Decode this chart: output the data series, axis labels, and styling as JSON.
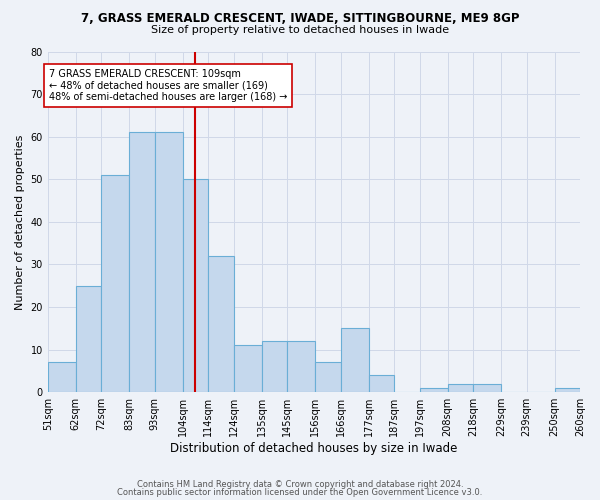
{
  "title1": "7, GRASS EMERALD CRESCENT, IWADE, SITTINGBOURNE, ME9 8GP",
  "title2": "Size of property relative to detached houses in Iwade",
  "xlabel": "Distribution of detached houses by size in Iwade",
  "ylabel": "Number of detached properties",
  "footer1": "Contains HM Land Registry data © Crown copyright and database right 2024.",
  "footer2": "Contains public sector information licensed under the Open Government Licence v3.0.",
  "bins": [
    51,
    62,
    72,
    83,
    93,
    104,
    114,
    124,
    135,
    145,
    156,
    166,
    177,
    187,
    197,
    208,
    218,
    229,
    239,
    250,
    260
  ],
  "bar_heights": [
    7,
    25,
    51,
    61,
    61,
    50,
    32,
    11,
    12,
    12,
    7,
    15,
    4,
    0,
    1,
    2,
    2,
    0,
    0,
    1
  ],
  "bar_color": "#c5d8ed",
  "bar_edge_color": "#6aaed6",
  "bar_edge_width": 0.8,
  "vline_x": 109,
  "vline_color": "#cc0000",
  "annotation_text": "7 GRASS EMERALD CRESCENT: 109sqm\n← 48% of detached houses are smaller (169)\n48% of semi-detached houses are larger (168) →",
  "annotation_box_color": "white",
  "annotation_box_edge": "#cc0000",
  "ylim": [
    0,
    80
  ],
  "yticks": [
    0,
    10,
    20,
    30,
    40,
    50,
    60,
    70,
    80
  ],
  "grid_color": "#d0d8e8",
  "background_color": "#eef2f8",
  "title1_fontsize": 8.5,
  "title2_fontsize": 8.0,
  "ylabel_fontsize": 8.0,
  "xlabel_fontsize": 8.5,
  "tick_fontsize": 7.0,
  "footer_fontsize": 6.0,
  "annot_fontsize": 7.0
}
